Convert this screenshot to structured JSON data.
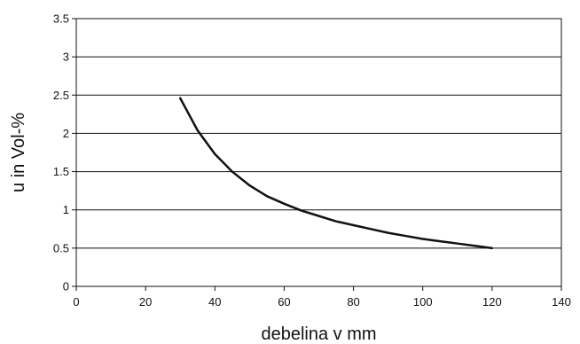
{
  "chart_data": {
    "type": "line",
    "xlabel": "debelina v mm",
    "ylabel": "u in Vol-%",
    "xlim": [
      0,
      140
    ],
    "ylim": [
      0,
      3.5
    ],
    "xticks": [
      "0",
      "20",
      "40",
      "60",
      "80",
      "100",
      "120",
      "140"
    ],
    "yticks": [
      "0",
      "0.5",
      "1",
      "1.5",
      "2",
      "2.5",
      "3",
      "3.5"
    ],
    "grid": "horizontal",
    "legend": "none",
    "series": [
      {
        "x": [
          30,
          35,
          40,
          45,
          50,
          55,
          60,
          65,
          70,
          75,
          80,
          85,
          90,
          95,
          100,
          105,
          110,
          115,
          120
        ],
        "y": [
          2.46,
          2.04,
          1.73,
          1.5,
          1.32,
          1.18,
          1.08,
          0.99,
          0.92,
          0.85,
          0.8,
          0.75,
          0.7,
          0.66,
          0.62,
          0.59,
          0.56,
          0.53,
          0.5
        ],
        "color": "#111111"
      }
    ]
  }
}
